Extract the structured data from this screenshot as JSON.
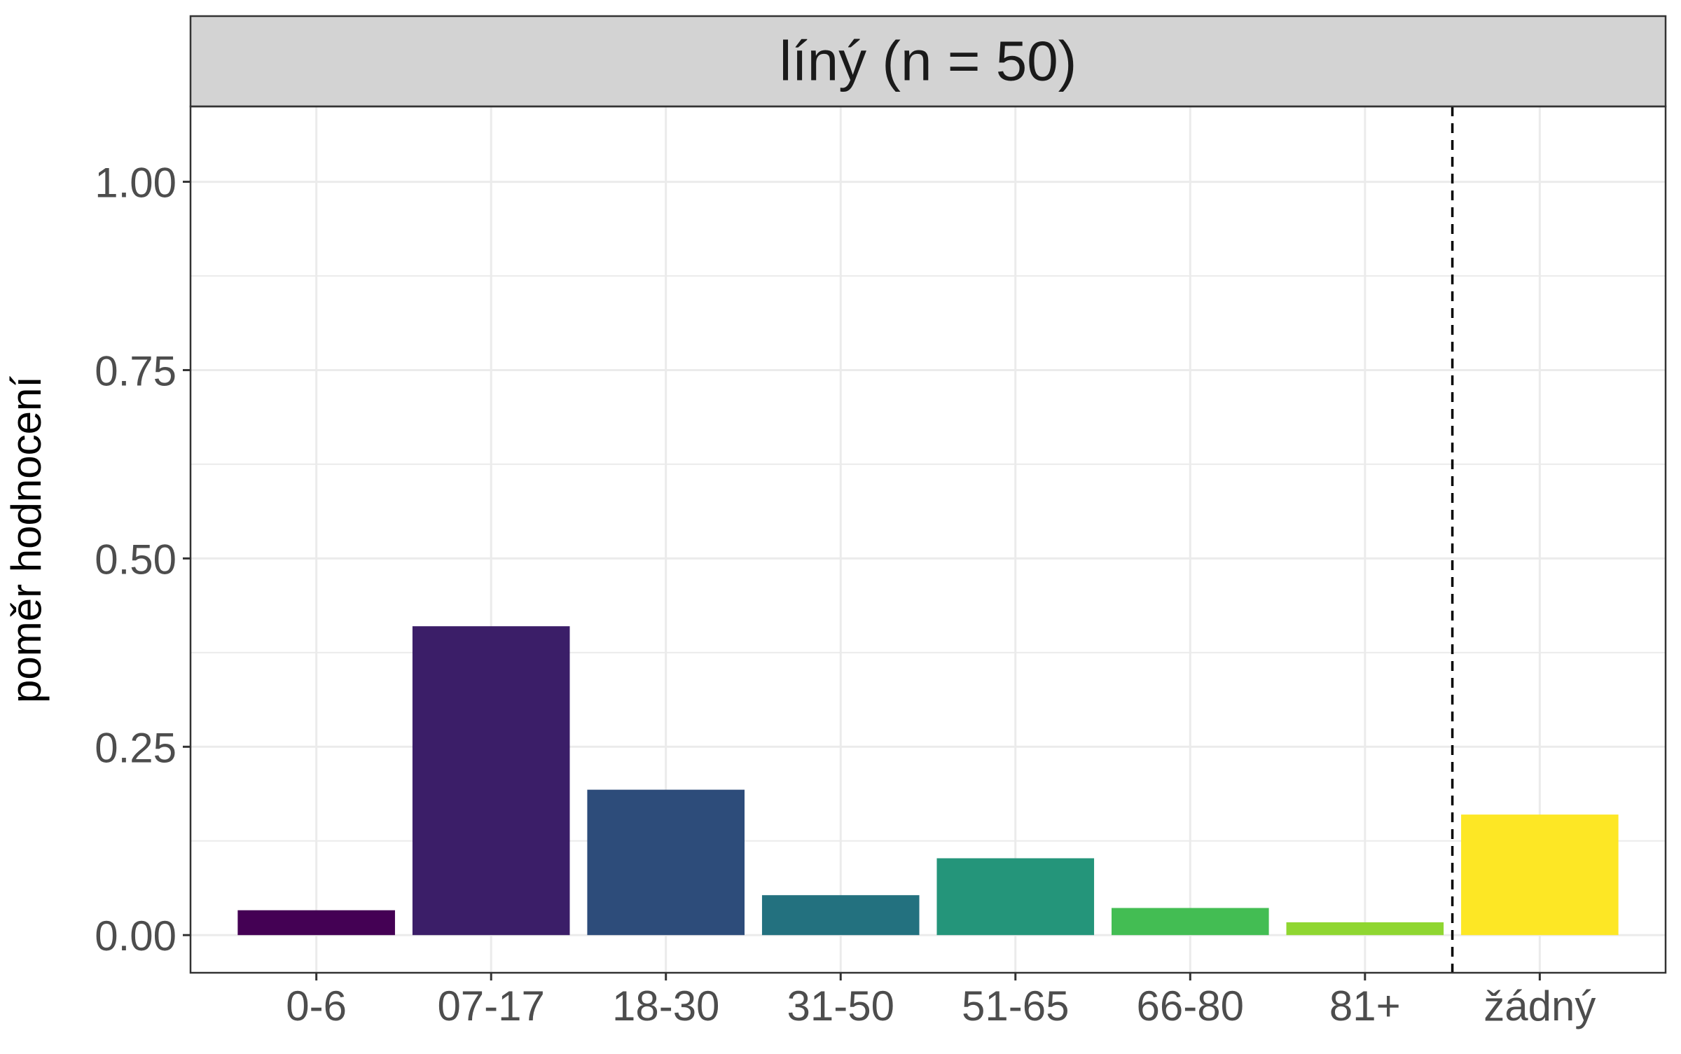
{
  "chart_data": {
    "type": "bar",
    "facet_title": "líný (n = 50)",
    "xlabel": "",
    "ylabel": "poměr hodnocení",
    "categories": [
      "0-6",
      "07-17",
      "18-30",
      "31-50",
      "51-65",
      "66-80",
      "81+",
      "žádný"
    ],
    "values": [
      0.033,
      0.41,
      0.193,
      0.053,
      0.102,
      0.036,
      0.017,
      0.16
    ],
    "colors": [
      "#440154",
      "#3B1E68",
      "#2D4C7A",
      "#23717F",
      "#24957A",
      "#43BD53",
      "#8FD631",
      "#FDE725"
    ],
    "ylim": [
      -0.05,
      1.1
    ],
    "yticks": [
      0.0,
      0.25,
      0.5,
      0.75,
      1.0
    ],
    "ytick_labels": [
      "0.00",
      "0.25",
      "0.50",
      "0.75",
      "1.00"
    ],
    "reference_line": {
      "between": [
        "81+",
        "žádný"
      ],
      "style": "dashed"
    },
    "grid": true,
    "legend": "none"
  }
}
